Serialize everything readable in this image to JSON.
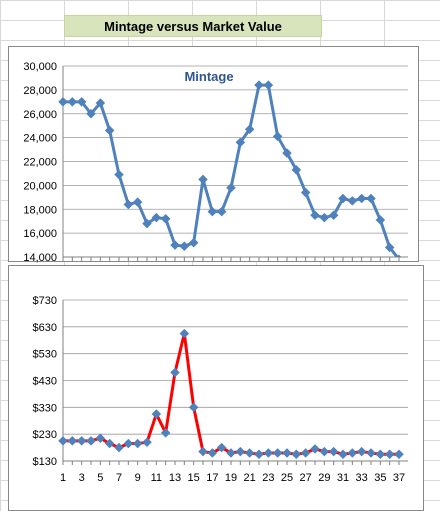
{
  "sheet_title": "Mintage versus Market Value",
  "colors": {
    "mintage_line": "#4f81bd",
    "market_line": "#ff0000",
    "marker": "#4f81bd",
    "grid": "#9a9a9a"
  },
  "chart_data": [
    {
      "type": "line",
      "title": "Mintage",
      "x": [
        1,
        2,
        3,
        4,
        5,
        6,
        7,
        8,
        9,
        10,
        11,
        12,
        13,
        14,
        15,
        16,
        17,
        18,
        19,
        20,
        21,
        22,
        23,
        24,
        25,
        26,
        27,
        28,
        29,
        30,
        31,
        32,
        33,
        34,
        35,
        36,
        37
      ],
      "series": [
        {
          "values": [
            27000,
            27000,
            27000,
            26000,
            26900,
            24600,
            20900,
            18400,
            18600,
            16800,
            17300,
            17200,
            15000,
            14900,
            15200,
            20500,
            17800,
            17800,
            19800,
            23600,
            24700,
            28400,
            28400,
            24100,
            22700,
            21300,
            19400,
            17500,
            17300,
            17500,
            18900,
            18700,
            18900,
            18900,
            17100,
            14800,
            13800
          ]
        }
      ],
      "ylim": [
        14000,
        30000
      ],
      "yticks": [
        "14,000",
        "16,000",
        "18,000",
        "20,000",
        "22,000",
        "24,000",
        "26,000",
        "28,000",
        "30,000"
      ],
      "grid": true
    },
    {
      "type": "line",
      "title": "",
      "x": [
        1,
        2,
        3,
        4,
        5,
        6,
        7,
        8,
        9,
        10,
        11,
        12,
        13,
        14,
        15,
        16,
        17,
        18,
        19,
        20,
        21,
        22,
        23,
        24,
        25,
        26,
        27,
        28,
        29,
        30,
        31,
        32,
        33,
        34,
        35,
        36,
        37
      ],
      "series": [
        {
          "values": [
            205,
            205,
            205,
            205,
            215,
            195,
            180,
            195,
            195,
            200,
            305,
            235,
            460,
            605,
            330,
            165,
            160,
            180,
            160,
            165,
            160,
            155,
            160,
            160,
            160,
            155,
            160,
            175,
            165,
            165,
            155,
            160,
            165,
            160,
            155,
            155,
            155
          ]
        }
      ],
      "ylim": [
        130,
        730
      ],
      "yticks": [
        "$130",
        "$230",
        "$330",
        "$430",
        "$530",
        "$630",
        "$730"
      ],
      "xticks": [
        "1",
        "3",
        "5",
        "7",
        "9",
        "11",
        "13",
        "15",
        "17",
        "19",
        "21",
        "23",
        "25",
        "27",
        "29",
        "31",
        "33",
        "35",
        "37"
      ],
      "grid": true
    }
  ]
}
